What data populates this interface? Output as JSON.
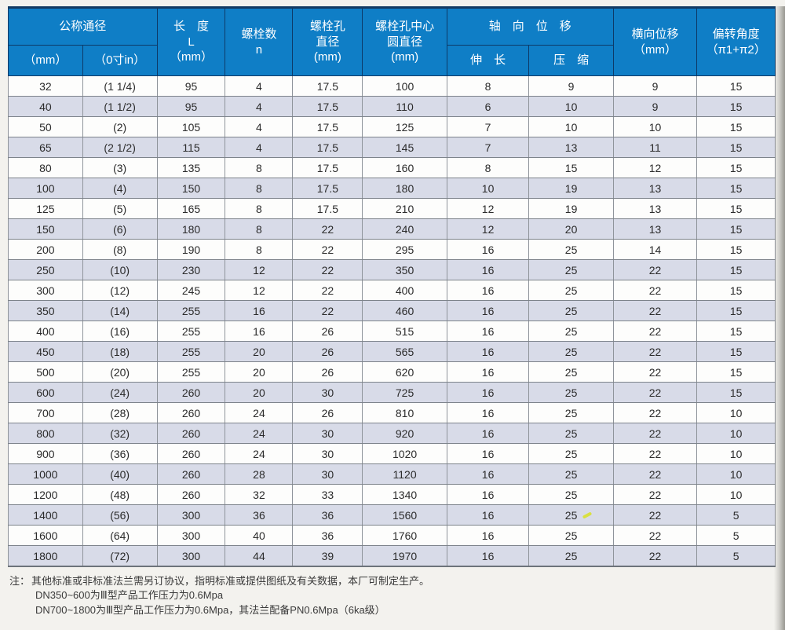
{
  "table": {
    "header": {
      "nominal_diameter": {
        "label": "公称通径",
        "sub_mm": "（mm）",
        "sub_inch": "（0寸in）"
      },
      "length": "长　度\nL\n（mm）",
      "bolt_count": "螺栓数\nn",
      "bolt_hole_diameter": "螺栓孔\n直径\n(mm)",
      "bolt_circle_diameter": "螺栓孔中心\n圆直径\n(mm)",
      "axial_displacement": {
        "label": "轴　向　位　移",
        "sub_extension": "伸　长",
        "sub_compression": "压　缩"
      },
      "lateral_displacement": "横向位移\n（mm）",
      "deflection_angle": "偏转角度\n（π1+π2）"
    },
    "rows": [
      [
        32,
        "(1 1/4)",
        95,
        4,
        17.5,
        100,
        8,
        9,
        9,
        15
      ],
      [
        40,
        "(1 1/2)",
        95,
        4,
        17.5,
        110,
        6,
        10,
        9,
        15
      ],
      [
        50,
        "(2)",
        105,
        4,
        17.5,
        125,
        7,
        10,
        10,
        15
      ],
      [
        65,
        "(2 1/2)",
        115,
        4,
        17.5,
        145,
        7,
        13,
        11,
        15
      ],
      [
        80,
        "(3)",
        135,
        8,
        17.5,
        160,
        8,
        15,
        12,
        15
      ],
      [
        100,
        "(4)",
        150,
        8,
        17.5,
        180,
        10,
        19,
        13,
        15
      ],
      [
        125,
        "(5)",
        165,
        8,
        17.5,
        210,
        12,
        19,
        13,
        15
      ],
      [
        150,
        "(6)",
        180,
        8,
        22,
        240,
        12,
        20,
        13,
        15
      ],
      [
        200,
        "(8)",
        190,
        8,
        22,
        295,
        16,
        25,
        14,
        15
      ],
      [
        250,
        "(10)",
        230,
        12,
        22,
        350,
        16,
        25,
        22,
        15
      ],
      [
        300,
        "(12)",
        245,
        12,
        22,
        400,
        16,
        25,
        22,
        15
      ],
      [
        350,
        "(14)",
        255,
        16,
        22,
        460,
        16,
        25,
        22,
        15
      ],
      [
        400,
        "(16)",
        255,
        16,
        26,
        515,
        16,
        25,
        22,
        15
      ],
      [
        450,
        "(18)",
        255,
        20,
        26,
        565,
        16,
        25,
        22,
        15
      ],
      [
        500,
        "(20)",
        255,
        20,
        26,
        620,
        16,
        25,
        22,
        15
      ],
      [
        600,
        "(24)",
        260,
        20,
        30,
        725,
        16,
        25,
        22,
        15
      ],
      [
        700,
        "(28)",
        260,
        24,
        26,
        810,
        16,
        25,
        22,
        10
      ],
      [
        800,
        "(32)",
        260,
        24,
        30,
        920,
        16,
        25,
        22,
        10
      ],
      [
        900,
        "(36)",
        260,
        24,
        30,
        1020,
        16,
        25,
        22,
        10
      ],
      [
        1000,
        "(40)",
        260,
        28,
        30,
        1120,
        16,
        25,
        22,
        10
      ],
      [
        1200,
        "(48)",
        260,
        32,
        33,
        1340,
        16,
        25,
        22,
        10
      ],
      [
        1400,
        "(56)",
        300,
        36,
        36,
        1560,
        16,
        25,
        22,
        5
      ],
      [
        1600,
        "(64)",
        300,
        40,
        36,
        1760,
        16,
        25,
        22,
        5
      ],
      [
        1800,
        "(72)",
        300,
        44,
        39,
        1970,
        16,
        25,
        22,
        5
      ]
    ],
    "highlight_mark": {
      "row_index": 21,
      "col_index": 7,
      "color": "#d9e02f"
    }
  },
  "notes": {
    "prefix": "注：",
    "line1": "其他标准或非标准法兰需另订协议，指明标准或提供图纸及有关数据，本厂可制定生产。",
    "line2": "DN350~600为Ⅲ型产品工作压力为0.6Mpa",
    "line3": "DN700~1800为Ⅲ型产品工作压力为0.6Mpa，其法兰配备PN0.6Mpa（6ka级）"
  },
  "colors": {
    "header_bg": "#0f7ec6",
    "header_text": "#ffffff",
    "row_alt_bg": "#d8dbe8",
    "grid_line": "#8f949b"
  }
}
